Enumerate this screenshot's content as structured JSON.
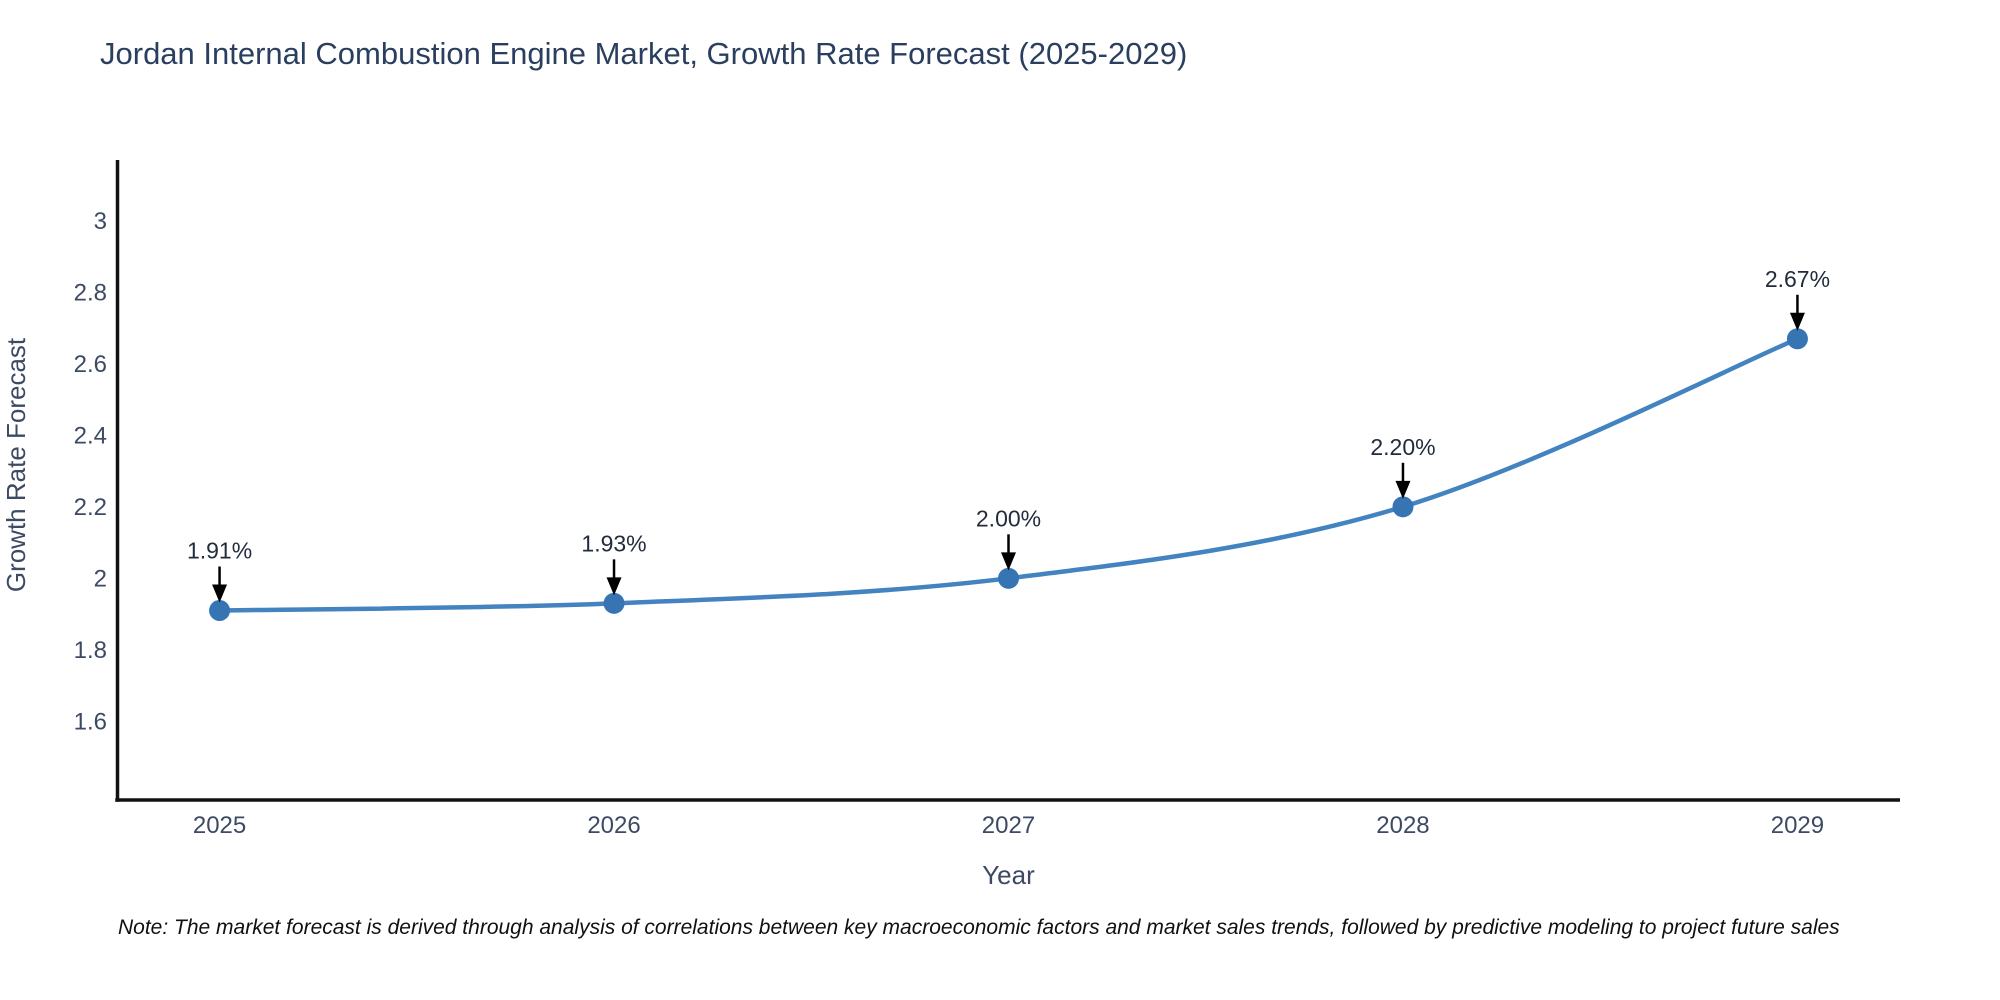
{
  "header": {
    "title": "Jordan Internal Combustion Engine Market, Growth Rate Forecast (2025-2029)"
  },
  "footer": {
    "note": "Note: The market forecast is derived through analysis of correlations between key macroeconomic factors and market sales trends, followed by predictive modeling to project future sales"
  },
  "chart_data": {
    "type": "line",
    "title": "Jordan Internal Combustion Engine Market, Growth Rate Forecast (2025-2029)",
    "x": [
      2025,
      2026,
      2027,
      2028,
      2029
    ],
    "values": [
      1.91,
      1.93,
      2.0,
      2.2,
      2.67
    ],
    "point_labels": [
      "1.91%",
      "1.93%",
      "2.00%",
      "2.20%",
      "2.67%"
    ],
    "xlabel": "Year",
    "ylabel": "Growth Rate Forecast",
    "x_tick_labels": [
      "2025",
      "2026",
      "2027",
      "2028",
      "2029"
    ],
    "y_ticks": [
      3,
      2.8,
      2.6,
      2.4,
      2.2,
      2,
      1.8,
      1.6
    ],
    "y_tick_labels": [
      "3",
      "2.8",
      "2.6",
      "2.4",
      "2.2",
      "2",
      "1.8",
      "1.6"
    ],
    "xlim": [
      2024.74,
      2029.26
    ],
    "ylim": [
      1.38,
      3.17
    ],
    "grid": false,
    "legend": "none",
    "line_shape": "spline",
    "annotation_arrows": "down",
    "colors": {
      "line": "#4383c0",
      "marker": "#3674b3",
      "title": "#2a3f5f",
      "tick": "#3d4a63",
      "axis_label": "#3d4a63",
      "annotation_text": "#222c3d",
      "arrow": "#000000",
      "spine": "#111111",
      "background": "#ffffff"
    }
  }
}
